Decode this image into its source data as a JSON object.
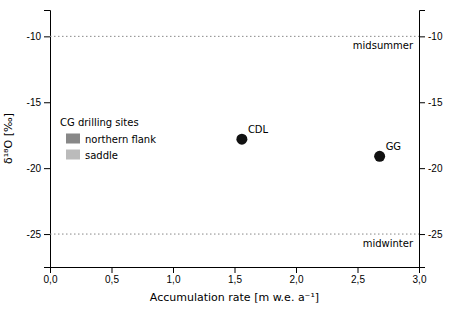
{
  "chart_data": {
    "type": "scatter",
    "xlabel": "Accumulation rate [m w.e. a⁻¹]",
    "ylabel": "δ¹⁸O [‰]",
    "x": [
      1.56,
      2.68
    ],
    "values": [
      -17.8,
      -19.1
    ],
    "point_labels": [
      "CDL",
      "GG"
    ],
    "color": "#111111",
    "xlim": [
      0,
      3.0
    ],
    "ylim": [
      -27.5,
      -8.0
    ],
    "xticks": [
      {
        "value": 0.0,
        "label": "0,0"
      },
      {
        "value": 0.5,
        "label": "0,5"
      },
      {
        "value": 1.0,
        "label": "1,0"
      },
      {
        "value": 1.5,
        "label": "1,5"
      },
      {
        "value": 2.0,
        "label": "2,0"
      },
      {
        "value": 2.5,
        "label": "2,5"
      },
      {
        "value": 3.0,
        "label": "3,0"
      }
    ],
    "yticks": [
      -25,
      -20,
      -15,
      -10
    ],
    "y2lim": [
      -27.5,
      -8.0
    ],
    "y2ticks": [
      -25,
      -20,
      -15,
      -10
    ],
    "reference_lines": [
      {
        "value": -10,
        "label": "midsummer"
      },
      {
        "value": -25,
        "label": "midwinter"
      }
    ],
    "legend": "center left",
    "legend_title": "CG drilling sites",
    "legend_entries": [
      {
        "label": "northern flank",
        "color": "#888888"
      },
      {
        "label": "saddle",
        "color": "#bbbbbb"
      }
    ]
  }
}
